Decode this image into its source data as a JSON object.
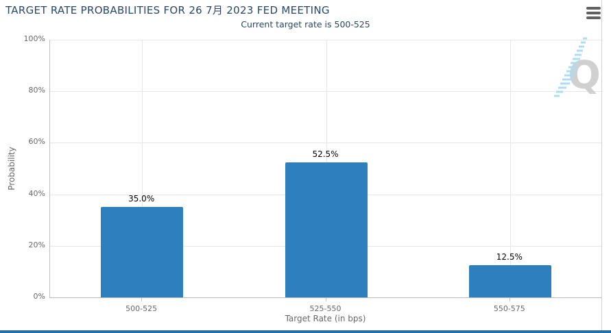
{
  "header": {
    "menu_icon": "hamburger-menu-icon"
  },
  "chart_data": {
    "type": "bar",
    "title": "TARGET RATE PROBABILITIES FOR 26 7月 2023 FED MEETING",
    "subtitle": "Current target rate is 500-525",
    "categories": [
      "500-525",
      "525-550",
      "550-575"
    ],
    "values": [
      35.0,
      52.5,
      12.5
    ],
    "data_labels": [
      "35.0%",
      "52.5%",
      "12.5%"
    ],
    "xlabel": "Target Rate (in bps)",
    "ylabel": "Probability",
    "ylim": [
      0,
      100
    ],
    "yticks": [
      "0%",
      "20%",
      "40%",
      "60%",
      "80%",
      "100%"
    ],
    "grid": true,
    "legend": "none",
    "bar_color": "#2d7fbe"
  },
  "watermark": {
    "letter": "Q"
  },
  "colors": {
    "heading": "#25476b",
    "bar": "#2d7fbe",
    "axis_text": "#666666",
    "gridline": "#e6e6e6",
    "axis_line": "#c0c0c0",
    "data_label": "#000000",
    "menu_icon": "#616161",
    "watermark_q": "#cccccc",
    "watermark_dash": "#a8dcf5",
    "right_border": "#d4d4d4",
    "bottom_strip": "#2c6da5"
  }
}
